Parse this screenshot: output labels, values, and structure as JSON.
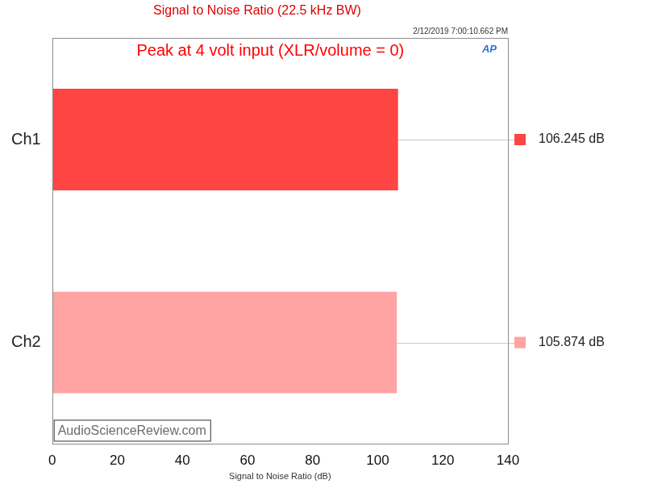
{
  "chart_data": {
    "type": "bar",
    "orientation": "horizontal",
    "title": "Signal to Noise Ratio (22.5 kHz BW)",
    "annotations": [
      "2/12/2019 7:00:10.662 PM",
      "Peak at 4 volt input (XLR/volume = 0)",
      "AP",
      "AudioScienceReview.com"
    ],
    "x_label": "Signal to Noise Ratio (dB)",
    "categories": [
      "Ch1",
      "Ch2"
    ],
    "values": [
      106.245,
      105.874
    ],
    "value_labels": [
      "106.245 dB",
      "105.874 dB"
    ],
    "data_labels": true,
    "colors": [
      "#ff4444",
      "#ffa3a3"
    ],
    "xlim": [
      0,
      140
    ],
    "xticks": [
      0,
      20,
      40,
      60,
      80,
      100,
      120,
      140
    ],
    "grid": false
  }
}
